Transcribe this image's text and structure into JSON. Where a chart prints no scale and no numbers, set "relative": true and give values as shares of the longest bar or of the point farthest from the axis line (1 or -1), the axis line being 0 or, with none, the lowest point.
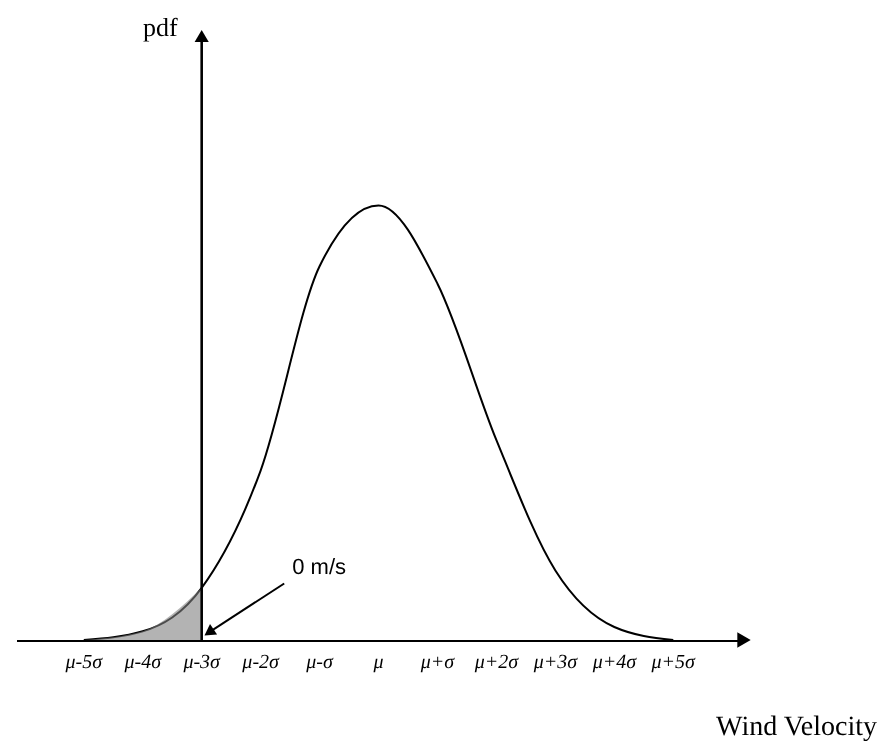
{
  "chart_data": {
    "type": "line",
    "relative": true,
    "xlabel": "Wind Velocity",
    "categories": [
      "μ-5σ",
      "μ-4σ",
      "μ-3σ",
      "μ-2σ",
      "μ-σ",
      "μ",
      "μ+σ",
      "μ+2σ",
      "μ+3σ",
      "μ+4σ",
      "μ+5σ"
    ],
    "series": [
      {
        "color": "#000000",
        "values": [
          0,
          0.02,
          0.12,
          0.39,
          0.86,
          1,
          0.82,
          0.46,
          0.16,
          0.03,
          0
        ]
      },
      {
        "type": "area",
        "color": "#808080",
        "values": [
          0,
          0.02,
          0.12,
          null,
          null,
          null,
          null,
          null,
          null,
          null,
          null
        ]
      }
    ],
    "ref_lines": [
      {
        "axis": "x",
        "value": "μ-3σ"
      }
    ],
    "annotations": [
      "pdf",
      {
        "text": "0 m/s",
        "x": "μ-3σ",
        "y": 0
      }
    ]
  }
}
